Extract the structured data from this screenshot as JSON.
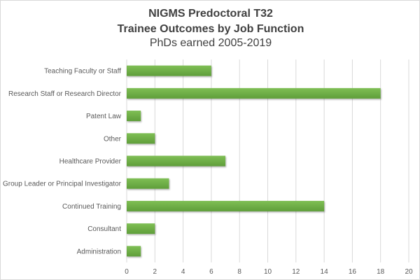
{
  "chart_data": {
    "type": "bar",
    "orientation": "horizontal",
    "title": "NIGMS Predoctoral T32",
    "subtitle": "Trainee Outcomes by Job Function",
    "subtitle2": "PhDs earned 2005-2019",
    "categories": [
      "Teaching Faculty or Staff",
      "Research Staff or Research Director",
      "Patent Law",
      "Other",
      "Healthcare Provider",
      "Group Leader or Principal Investigator",
      "Continued Training",
      "Consultant",
      "Administration"
    ],
    "values": [
      6,
      18,
      1,
      2,
      7,
      3,
      14,
      2,
      1
    ],
    "xlim": [
      0,
      20
    ],
    "xticks": [
      "0",
      "2",
      "4",
      "6",
      "8",
      "10",
      "12",
      "14",
      "16",
      "18",
      "20"
    ],
    "xlabel": "",
    "ylabel": "",
    "grid": "vertical",
    "legend": "none",
    "bar_color": "#70ad47"
  }
}
